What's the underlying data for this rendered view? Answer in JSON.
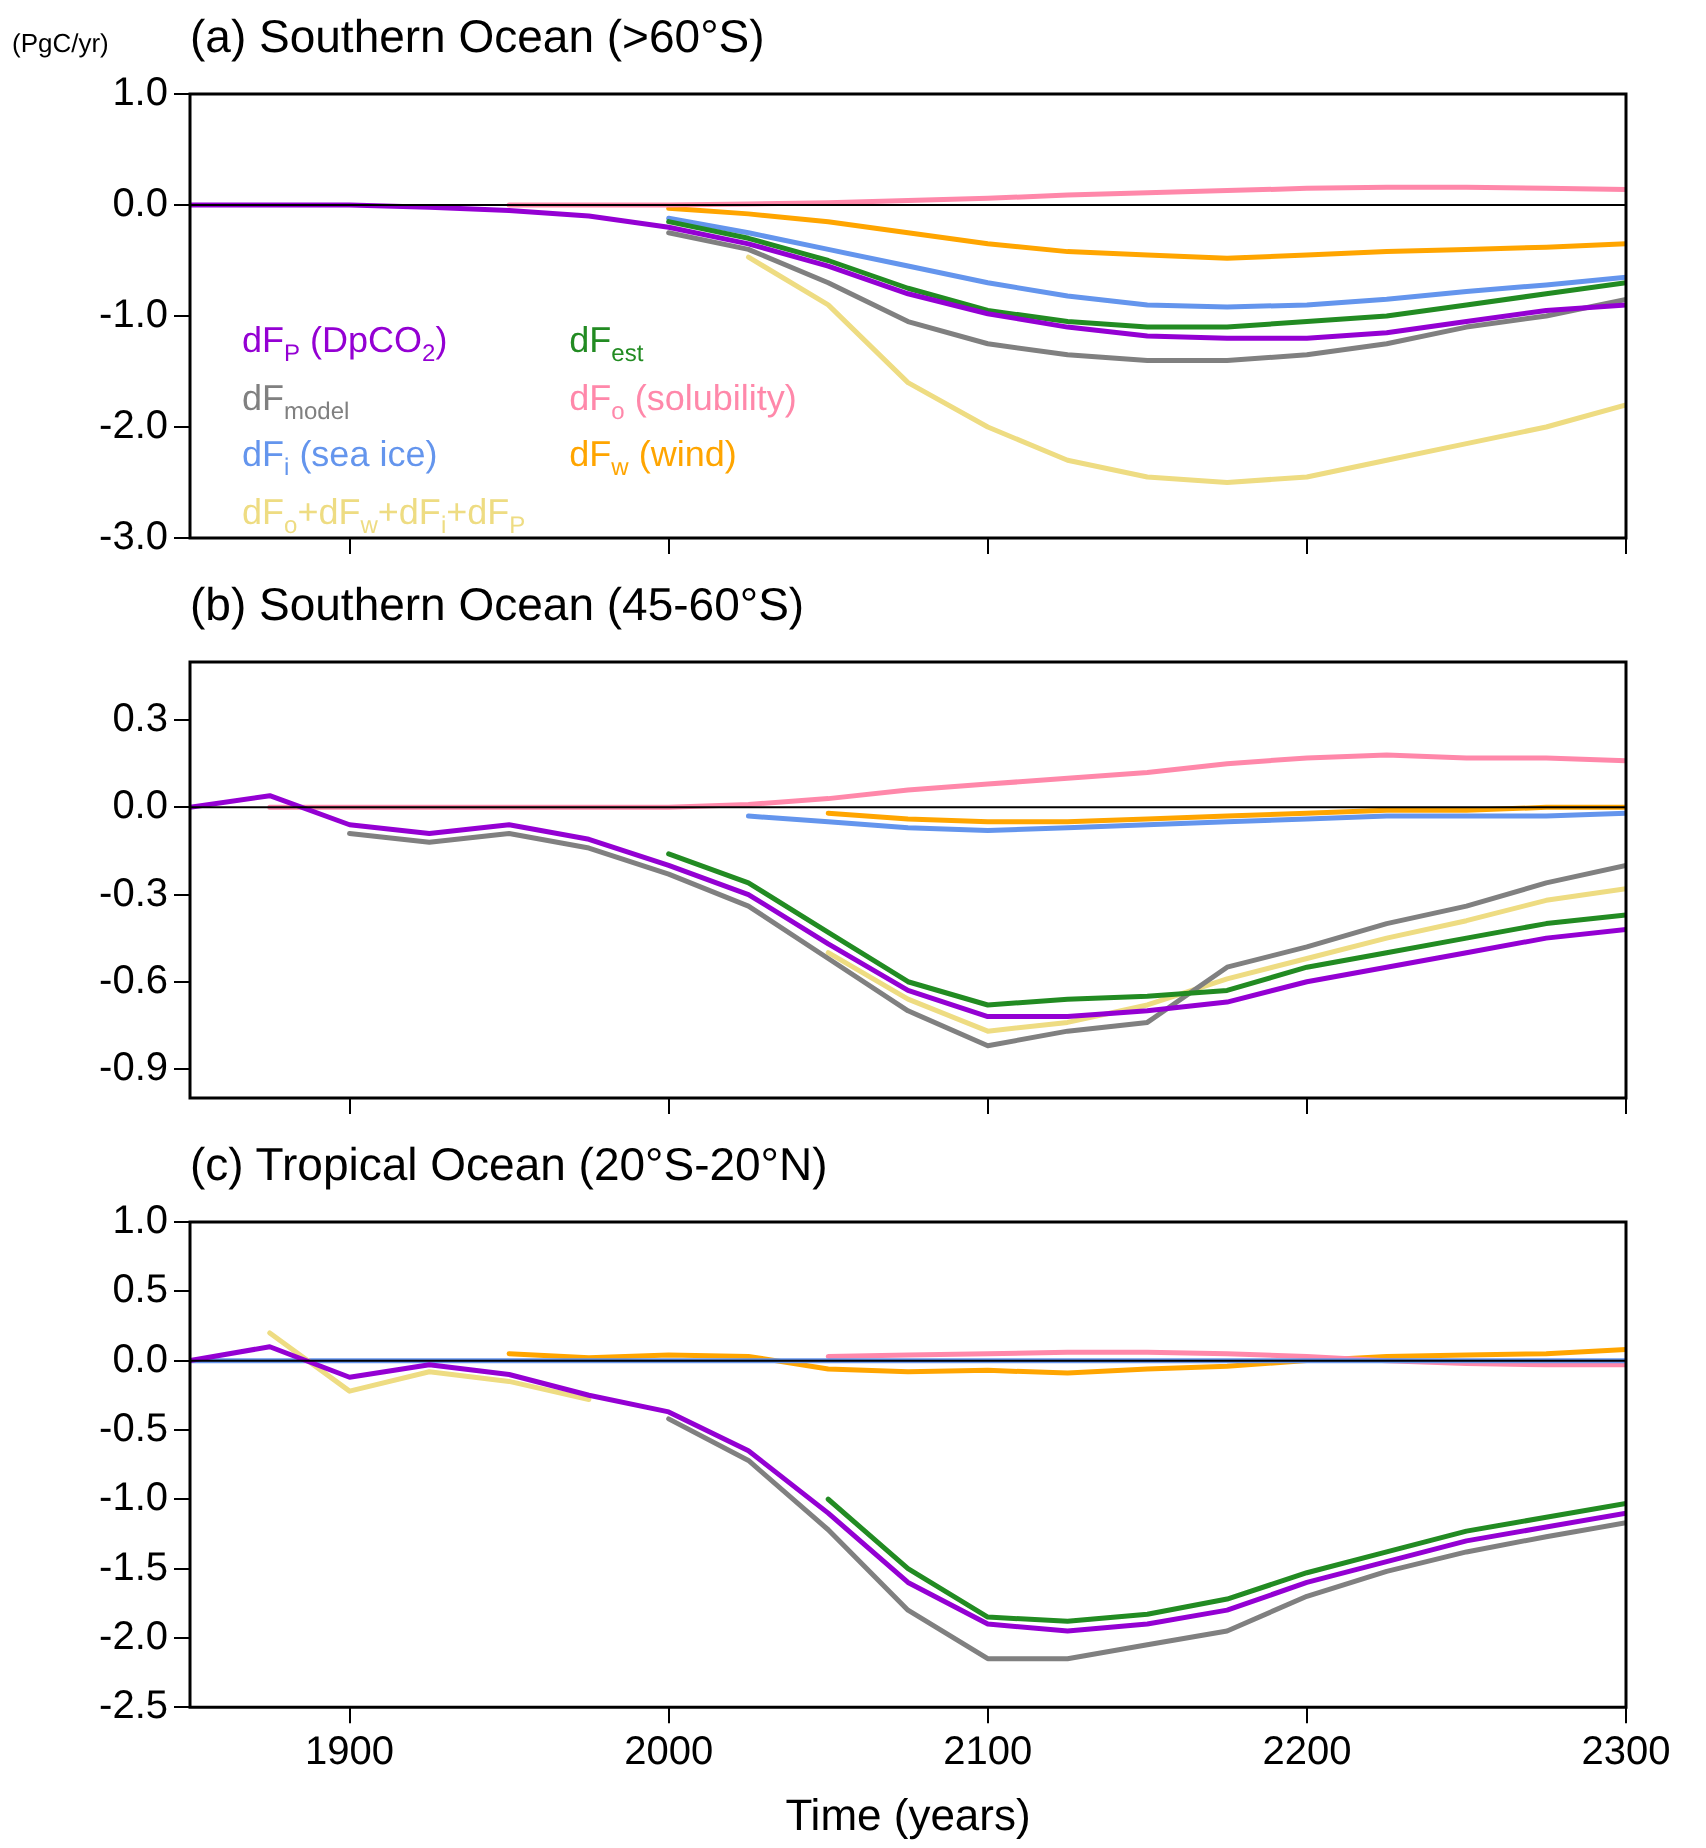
{
  "chart_data": [
    {
      "type": "line",
      "title": "(a) Southern Ocean (>60°S)",
      "ylabel": "(PgC/yr)",
      "legend": "left",
      "tick_labels": "y",
      "grid": false,
      "marker": "none",
      "line_style": "solid",
      "x": [
        1850,
        1875,
        1900,
        1925,
        1950,
        1975,
        2000,
        2025,
        2050,
        2075,
        2100,
        2125,
        2150,
        2175,
        2200,
        2225,
        2250,
        2275,
        2300
      ],
      "xlim": [
        1850,
        2300
      ],
      "xticks": [
        1900,
        2000,
        2100,
        2200,
        2300
      ],
      "ylim": [
        -3,
        1
      ],
      "yticks": [
        {
          "value": 1,
          "label": "1.0"
        },
        {
          "value": 0,
          "label": "0.0"
        },
        {
          "value": -1,
          "label": "-1.0"
        },
        {
          "value": -2,
          "label": "-2.0"
        },
        {
          "value": -3,
          "label": "-3.0"
        }
      ],
      "ref_lines": [
        {
          "axis": "y",
          "value": 0,
          "color": "#000000"
        }
      ],
      "series": [
        {
          "name": "dF$_{P}$ (DpCO$_{2}$)",
          "color": "#9400d3",
          "values": [
            0,
            0,
            0,
            -0.02,
            -0.05,
            -0.1,
            -0.2,
            -0.35,
            -0.55,
            -0.8,
            -0.98,
            -1.1,
            -1.18,
            -1.2,
            -1.2,
            -1.15,
            -1.05,
            -0.95,
            -0.9
          ]
        },
        {
          "name": "dF$_{est}$",
          "color": "#228b22",
          "values": [
            null,
            null,
            null,
            null,
            null,
            null,
            -0.15,
            -0.3,
            -0.5,
            -0.75,
            -0.95,
            -1.05,
            -1.1,
            -1.1,
            -1.05,
            -1.0,
            -0.9,
            -0.8,
            -0.7
          ]
        },
        {
          "name": "dF$_{model}$",
          "color": "#808080",
          "values": [
            null,
            null,
            null,
            null,
            null,
            null,
            -0.25,
            -0.4,
            -0.7,
            -1.05,
            -1.25,
            -1.35,
            -1.4,
            -1.4,
            -1.35,
            -1.25,
            -1.1,
            -1.0,
            -0.85
          ]
        },
        {
          "name": "dF$_{o}$ (solubility)",
          "color": "#ff88aa",
          "values": [
            null,
            null,
            null,
            null,
            0,
            0,
            0,
            0.01,
            0.02,
            0.04,
            0.06,
            0.09,
            0.11,
            0.13,
            0.15,
            0.16,
            0.16,
            0.15,
            0.14
          ]
        },
        {
          "name": "dF$_{i}$ (sea ice)",
          "color": "#6495ed",
          "values": [
            null,
            null,
            null,
            null,
            null,
            null,
            -0.12,
            -0.25,
            -0.4,
            -0.55,
            -0.7,
            -0.82,
            -0.9,
            -0.92,
            -0.9,
            -0.85,
            -0.78,
            -0.72,
            -0.65
          ]
        },
        {
          "name": "dF$_{w}$ (wind)",
          "color": "#ffa500",
          "values": [
            null,
            null,
            null,
            null,
            null,
            null,
            -0.03,
            -0.08,
            -0.15,
            -0.25,
            -0.35,
            -0.42,
            -0.45,
            -0.48,
            -0.45,
            -0.42,
            -0.4,
            -0.38,
            -0.35
          ]
        },
        {
          "name": "dF$_{o}$+dF$_{w}$+dF$_{i}$+dF$_{P}$",
          "color": "#eedc82",
          "values": [
            null,
            null,
            null,
            null,
            null,
            null,
            null,
            -0.47,
            -0.9,
            -1.6,
            -2.0,
            -2.3,
            -2.45,
            -2.5,
            -2.45,
            -2.3,
            -2.15,
            -2.0,
            -1.8
          ]
        }
      ]
    },
    {
      "type": "line",
      "title": "(b) Southern Ocean (45-60°S)",
      "tick_labels": "y",
      "grid": false,
      "marker": "none",
      "line_style": "solid",
      "x": [
        1850,
        1875,
        1900,
        1925,
        1950,
        1975,
        2000,
        2025,
        2050,
        2075,
        2100,
        2125,
        2150,
        2175,
        2200,
        2225,
        2250,
        2275,
        2300
      ],
      "xlim": [
        1850,
        2300
      ],
      "xticks": [
        1900,
        2000,
        2100,
        2200,
        2300
      ],
      "ylim": [
        -1,
        0.5
      ],
      "yticks": [
        {
          "value": 0.3,
          "label": "0.3"
        },
        {
          "value": 0,
          "label": "0.0"
        },
        {
          "value": -0.3,
          "label": "-0.3"
        },
        {
          "value": -0.6,
          "label": "-0.6"
        },
        {
          "value": -0.9,
          "label": "-0.9"
        }
      ],
      "ref_lines": [
        {
          "axis": "y",
          "value": 0,
          "color": "#000000"
        }
      ],
      "series": [
        {
          "color": "#9400d3",
          "values": [
            0,
            0.04,
            -0.06,
            -0.09,
            -0.06,
            -0.11,
            -0.2,
            -0.3,
            -0.47,
            -0.63,
            -0.72,
            -0.72,
            -0.7,
            -0.67,
            -0.6,
            -0.55,
            -0.5,
            -0.45,
            -0.42
          ]
        },
        {
          "color": "#228b22",
          "values": [
            null,
            null,
            null,
            null,
            null,
            null,
            -0.16,
            -0.26,
            -0.43,
            -0.6,
            -0.68,
            -0.66,
            -0.65,
            -0.63,
            -0.55,
            -0.5,
            -0.45,
            -0.4,
            -0.37
          ]
        },
        {
          "color": "#808080",
          "values": [
            null,
            null,
            -0.09,
            -0.12,
            -0.09,
            -0.14,
            -0.23,
            -0.34,
            -0.52,
            -0.7,
            -0.82,
            -0.77,
            -0.74,
            -0.55,
            -0.48,
            -0.4,
            -0.34,
            -0.26,
            -0.2
          ]
        },
        {
          "color": "#eedc82",
          "values": [
            null,
            null,
            null,
            null,
            null,
            null,
            null,
            null,
            -0.5,
            -0.66,
            -0.77,
            -0.74,
            -0.68,
            -0.59,
            -0.52,
            -0.45,
            -0.39,
            -0.32,
            -0.28
          ]
        },
        {
          "color": "#ff88aa",
          "values": [
            null,
            0,
            0,
            0,
            0,
            0,
            0,
            0.01,
            0.03,
            0.06,
            0.08,
            0.1,
            0.12,
            0.15,
            0.17,
            0.18,
            0.17,
            0.17,
            0.16
          ]
        },
        {
          "color": "#6495ed",
          "values": [
            null,
            null,
            null,
            null,
            null,
            null,
            null,
            -0.03,
            -0.05,
            -0.07,
            -0.08,
            -0.07,
            -0.06,
            -0.05,
            -0.04,
            -0.03,
            -0.03,
            -0.03,
            -0.02
          ]
        },
        {
          "color": "#ffa500",
          "values": [
            null,
            null,
            null,
            null,
            null,
            null,
            null,
            null,
            -0.02,
            -0.04,
            -0.05,
            -0.05,
            -0.04,
            -0.03,
            -0.02,
            -0.01,
            -0.01,
            0,
            0
          ]
        }
      ]
    },
    {
      "type": "line",
      "title": "(c) Tropical Ocean (20°S-20°N)",
      "xlabel": "Time (years)",
      "grid": false,
      "marker": "none",
      "line_style": "solid",
      "x": [
        1850,
        1875,
        1900,
        1925,
        1950,
        1975,
        2000,
        2025,
        2050,
        2075,
        2100,
        2125,
        2150,
        2175,
        2200,
        2225,
        2250,
        2275,
        2300
      ],
      "xlim": [
        1850,
        2300
      ],
      "xticks": [
        1900,
        2000,
        2100,
        2200,
        2300
      ],
      "ylim": [
        -2.5,
        1
      ],
      "yticks": [
        {
          "value": 1,
          "label": "1.0"
        },
        {
          "value": 0.5,
          "label": "0.5"
        },
        {
          "value": 0,
          "label": "0.0"
        },
        {
          "value": -0.5,
          "label": "-0.5"
        },
        {
          "value": -1,
          "label": "-1.0"
        },
        {
          "value": -1.5,
          "label": "-1.5"
        },
        {
          "value": -2,
          "label": "-2.0"
        },
        {
          "value": -2.5,
          "label": "-2.5"
        }
      ],
      "ref_lines": [
        {
          "axis": "y",
          "value": 0,
          "color": "#000000"
        }
      ],
      "series": [
        {
          "color": "#9400d3",
          "values": [
            0,
            0.1,
            -0.12,
            -0.03,
            -0.1,
            -0.25,
            -0.37,
            -0.65,
            -1.1,
            -1.6,
            -1.9,
            -1.95,
            -1.9,
            -1.8,
            -1.6,
            -1.45,
            -1.3,
            -1.2,
            -1.1
          ]
        },
        {
          "color": "#228b22",
          "values": [
            null,
            null,
            null,
            null,
            null,
            null,
            null,
            null,
            -1.0,
            -1.5,
            -1.85,
            -1.88,
            -1.83,
            -1.72,
            -1.53,
            -1.38,
            -1.23,
            -1.13,
            -1.03
          ]
        },
        {
          "color": "#808080",
          "values": [
            null,
            null,
            null,
            null,
            null,
            null,
            -0.42,
            -0.72,
            -1.22,
            -1.8,
            -2.15,
            -2.15,
            -2.05,
            -1.95,
            -1.7,
            -1.52,
            -1.38,
            -1.27,
            -1.17
          ]
        },
        {
          "color": "#eedc82",
          "values": [
            null,
            0.2,
            -0.22,
            -0.08,
            -0.15,
            -0.28,
            null,
            null,
            null,
            null,
            null,
            null,
            null,
            null,
            null,
            null,
            null,
            null,
            null
          ]
        },
        {
          "color": "#6495ed",
          "values": [
            0,
            0,
            0,
            0,
            0,
            0,
            0,
            0,
            0,
            0,
            0,
            0,
            0,
            0,
            0,
            0,
            0,
            0,
            0
          ]
        },
        {
          "color": "#ff88aa",
          "values": [
            null,
            null,
            null,
            null,
            null,
            null,
            null,
            null,
            0.03,
            0.04,
            0.05,
            0.06,
            0.06,
            0.05,
            0.03,
            0,
            -0.02,
            -0.03,
            -0.03
          ]
        },
        {
          "color": "#ffa500",
          "values": [
            null,
            null,
            null,
            null,
            0.05,
            0.02,
            0.04,
            0.03,
            -0.06,
            -0.08,
            -0.07,
            -0.09,
            -0.06,
            -0.04,
            0,
            0.03,
            0.04,
            0.05,
            0.08
          ]
        }
      ]
    }
  ]
}
